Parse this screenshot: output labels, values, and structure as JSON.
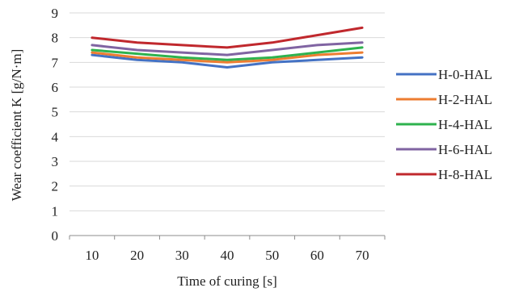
{
  "chart_data": {
    "type": "line",
    "xlabel": "Time of curing [s]",
    "ylabel": "Wear coefficient K [g/N·m]",
    "categories": [
      "10",
      "20",
      "30",
      "40",
      "50",
      "60",
      "70"
    ],
    "ylim": [
      0,
      9
    ],
    "yticks": [
      "0",
      "1",
      "2",
      "3",
      "4",
      "5",
      "6",
      "7",
      "8",
      "9"
    ],
    "grid": "horizontal",
    "legend_position": "right",
    "series": [
      {
        "name": "H-0-HAL",
        "color": "#4472c4",
        "values": [
          7.3,
          7.1,
          7.0,
          6.8,
          7.0,
          7.1,
          7.2
        ]
      },
      {
        "name": "H-2-HAL",
        "color": "#ed7d31",
        "values": [
          7.4,
          7.2,
          7.1,
          7.0,
          7.1,
          7.3,
          7.4
        ]
      },
      {
        "name": "H-4-HAL",
        "color": "#2eb24e",
        "values": [
          7.5,
          7.35,
          7.2,
          7.1,
          7.2,
          7.4,
          7.6
        ]
      },
      {
        "name": "H-6-HAL",
        "color": "#8064a2",
        "values": [
          7.7,
          7.5,
          7.4,
          7.3,
          7.5,
          7.7,
          7.8
        ]
      },
      {
        "name": "H-8-HAL",
        "color": "#c0282d",
        "values": [
          8.0,
          7.8,
          7.7,
          7.6,
          7.8,
          8.1,
          8.4
        ]
      }
    ]
  }
}
